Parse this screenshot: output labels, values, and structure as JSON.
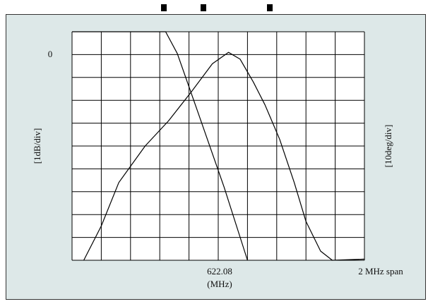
{
  "colors": {
    "background": "#dde8e8",
    "plot_area": "#ffffff",
    "grid": "#000000",
    "trace": "#000000"
  },
  "chart_data": {
    "type": "line",
    "title": "",
    "x_center_label": "622.08",
    "x_unit_label": "(MHz)",
    "x_span_label": "2 MHz span",
    "y_left_label": "[1dB/div]",
    "y_right_label": "[10deg/div]",
    "y_ref_label": "0",
    "x_divisions": 10,
    "y_divisions": 10,
    "xlim": [
      0,
      10
    ],
    "ylim": [
      -9,
      1
    ],
    "grid": true,
    "series": [
      {
        "axis": "left",
        "points": [
          [
            0,
            1
          ],
          [
            3.2,
            1
          ],
          [
            3.6,
            0.05
          ],
          [
            4.3,
            -2.5
          ],
          [
            5.2,
            -5.8
          ],
          [
            6,
            -9
          ]
        ]
      },
      {
        "axis": "right",
        "points": [
          [
            0.4,
            -9
          ],
          [
            1,
            -7.5
          ],
          [
            1.6,
            -5.6
          ],
          [
            2.5,
            -4
          ],
          [
            3.3,
            -2.9
          ],
          [
            4.1,
            -1.6
          ],
          [
            4.8,
            -0.4
          ],
          [
            5.35,
            0.1
          ],
          [
            5.75,
            -0.2
          ],
          [
            6.2,
            -1.2
          ],
          [
            6.6,
            -2.2
          ],
          [
            7.1,
            -3.7
          ],
          [
            7.6,
            -5.6
          ],
          [
            8,
            -7.3
          ],
          [
            8.5,
            -8.6
          ],
          [
            8.9,
            -9
          ],
          [
            10,
            -8.95
          ]
        ]
      }
    ]
  }
}
